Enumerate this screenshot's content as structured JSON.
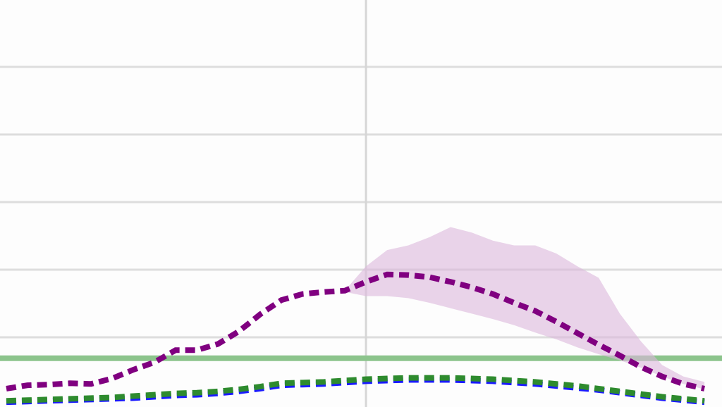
{
  "chart_data": {
    "type": "line",
    "x": [
      -17,
      -16,
      -15,
      -14,
      -13,
      -12,
      -11,
      -10,
      -9,
      -8,
      -7,
      -6,
      -5,
      -4,
      -3,
      -2,
      -1,
      0,
      1,
      2,
      3,
      4,
      5,
      6,
      7,
      8,
      9,
      10,
      11,
      12,
      13,
      14,
      15,
      16
    ],
    "xlim": [
      -17.3,
      16.83
    ],
    "xticks": [
      0
    ],
    "ylim": [
      0,
      6
    ],
    "yticks": [
      1,
      2,
      3,
      4,
      5
    ],
    "grid": true,
    "hline": {
      "value": 0.69,
      "color": "#8cc48c"
    },
    "series": [
      {
        "color": "#800080",
        "values": [
          0.24,
          0.29,
          0.3,
          0.32,
          0.31,
          0.39,
          0.52,
          0.63,
          0.81,
          0.81,
          0.9,
          1.09,
          1.34,
          1.55,
          1.64,
          1.67,
          1.69,
          1.82,
          1.93,
          1.92,
          1.89,
          1.82,
          1.74,
          1.64,
          1.51,
          1.39,
          1.23,
          1.06,
          0.89,
          0.73,
          0.56,
          0.42,
          0.31,
          0.24
        ],
        "band_color": "#dcb8dc",
        "upper": [
          null,
          null,
          null,
          null,
          null,
          null,
          null,
          null,
          null,
          null,
          null,
          null,
          null,
          null,
          null,
          null,
          1.69,
          2.05,
          2.29,
          2.36,
          2.48,
          2.63,
          2.55,
          2.43,
          2.36,
          2.36,
          2.24,
          2.05,
          1.88,
          1.35,
          0.94,
          0.59,
          0.42,
          0.34
        ],
        "lower": [
          null,
          null,
          null,
          null,
          null,
          null,
          null,
          null,
          null,
          null,
          null,
          null,
          null,
          null,
          null,
          null,
          1.67,
          1.61,
          1.61,
          1.58,
          1.51,
          1.43,
          1.35,
          1.27,
          1.18,
          1.07,
          0.97,
          0.85,
          0.75,
          0.66,
          0.55,
          0.42,
          0.31,
          0.23
        ]
      },
      {
        "color": "#2e8b2e",
        "values": [
          0.06,
          0.07,
          0.08,
          0.09,
          0.1,
          0.11,
          0.13,
          0.15,
          0.17,
          0.18,
          0.2,
          0.23,
          0.27,
          0.32,
          0.33,
          0.34,
          0.36,
          0.38,
          0.39,
          0.4,
          0.4,
          0.4,
          0.39,
          0.38,
          0.36,
          0.34,
          0.31,
          0.28,
          0.24,
          0.2,
          0.16,
          0.12,
          0.09,
          0.06
        ]
      },
      {
        "color": "#1a1aff",
        "values": [
          0.04,
          0.05,
          0.06,
          0.07,
          0.08,
          0.09,
          0.1,
          0.12,
          0.14,
          0.15,
          0.17,
          0.2,
          0.24,
          0.29,
          0.3,
          0.31,
          0.33,
          0.35,
          0.36,
          0.37,
          0.37,
          0.37,
          0.36,
          0.35,
          0.33,
          0.31,
          0.28,
          0.25,
          0.22,
          0.18,
          0.14,
          0.1,
          0.07,
          0.04
        ]
      }
    ]
  }
}
